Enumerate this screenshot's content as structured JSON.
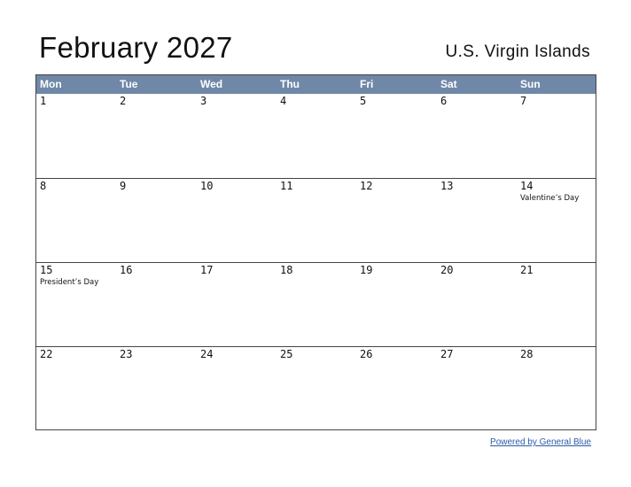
{
  "title": "February 2027",
  "region": "U.S. Virgin Islands",
  "weekdays": [
    "Mon",
    "Tue",
    "Wed",
    "Thu",
    "Fri",
    "Sat",
    "Sun"
  ],
  "weeks": [
    [
      {
        "n": "1"
      },
      {
        "n": "2"
      },
      {
        "n": "3"
      },
      {
        "n": "4"
      },
      {
        "n": "5"
      },
      {
        "n": "6"
      },
      {
        "n": "7"
      }
    ],
    [
      {
        "n": "8"
      },
      {
        "n": "9"
      },
      {
        "n": "10"
      },
      {
        "n": "11"
      },
      {
        "n": "12"
      },
      {
        "n": "13"
      },
      {
        "n": "14",
        "event": "Valentine’s Day"
      }
    ],
    [
      {
        "n": "15",
        "event": "President’s Day"
      },
      {
        "n": "16"
      },
      {
        "n": "17"
      },
      {
        "n": "18"
      },
      {
        "n": "19"
      },
      {
        "n": "20"
      },
      {
        "n": "21"
      }
    ],
    [
      {
        "n": "22"
      },
      {
        "n": "23"
      },
      {
        "n": "24"
      },
      {
        "n": "25"
      },
      {
        "n": "26"
      },
      {
        "n": "27"
      },
      {
        "n": "28"
      }
    ]
  ],
  "footer": "Powered by General Blue",
  "colors": {
    "header_bg": "#7088a8",
    "link": "#2a5aa8"
  }
}
